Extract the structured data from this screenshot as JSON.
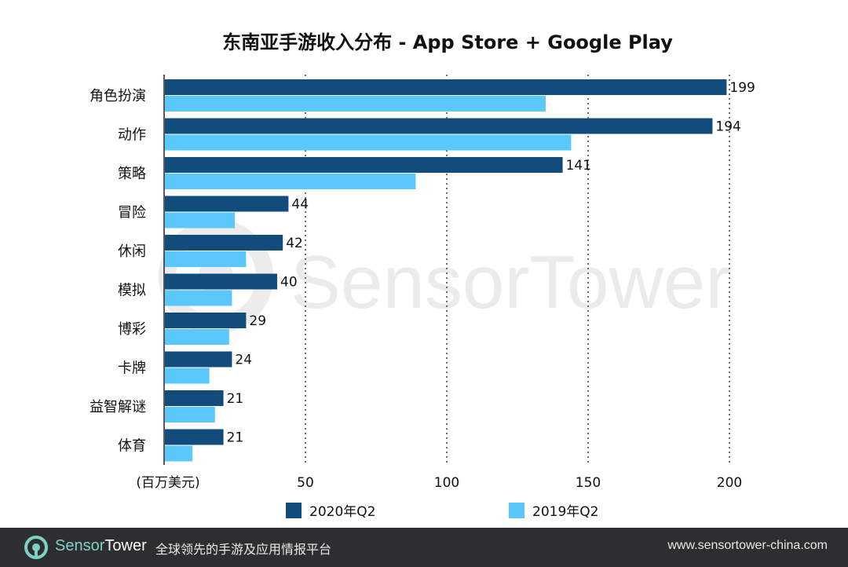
{
  "chart_data": {
    "type": "bar",
    "orientation": "horizontal",
    "title": "东南亚手游收入分布 - App Store + Google Play",
    "xlabel": "(百万美元)",
    "ylabel": "",
    "xlim": [
      0,
      200
    ],
    "x_ticks": [
      50,
      100,
      150,
      200
    ],
    "grid": "vertical-dotted",
    "legend_position": "bottom",
    "categories": [
      "角色扮演",
      "动作",
      "策略",
      "冒险",
      "休闲",
      "模拟",
      "博彩",
      "卡牌",
      "益智解谜",
      "体育"
    ],
    "series": [
      {
        "name": "2020年Q2",
        "color": "#124c7c",
        "values": [
          199,
          194,
          141,
          44,
          42,
          40,
          29,
          24,
          21,
          21
        ],
        "labels": [
          "199",
          "194",
          "141",
          "44",
          "42",
          "40",
          "29",
          "24",
          "21",
          "21"
        ]
      },
      {
        "name": "2019年Q2",
        "color": "#5ac8fa",
        "values": [
          135,
          144,
          89,
          25,
          29,
          24,
          23,
          16,
          18,
          10
        ]
      }
    ]
  },
  "watermark": {
    "text": "SensorTower",
    "color": "#e6e6e6"
  },
  "footer": {
    "brand_part1": "Sensor",
    "brand_part2": "Tower",
    "tagline": "全球领先的手游及应用情报平台",
    "website": "www.sensortower-china.com",
    "logo_icon": "sensortower-logo-icon",
    "bg_color": "#2e2e30",
    "accent_color": "#7fd0c6"
  }
}
